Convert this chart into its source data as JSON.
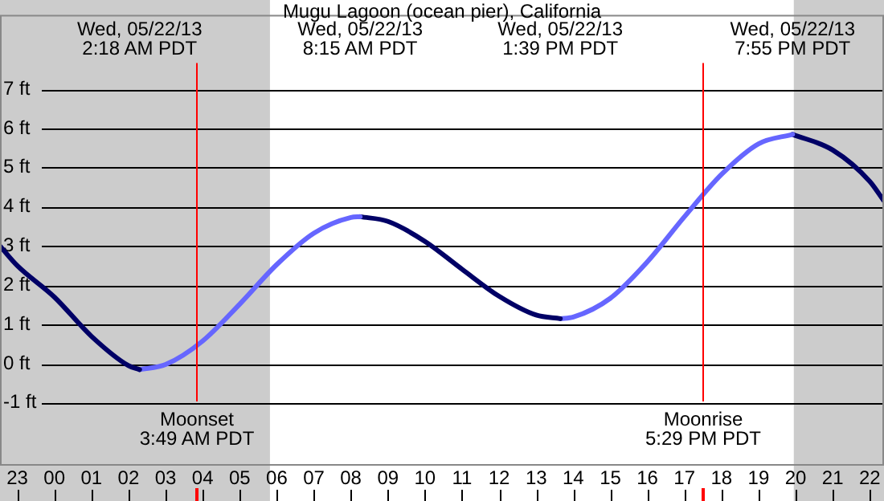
{
  "chart_data": {
    "type": "line",
    "title": "Mugu Lagoon (ocean pier), California",
    "xlim": [
      "--05-21T22:32",
      "--05-22T22:23"
    ],
    "xticks": [
      {
        "value": "--05-21T23:00",
        "label": "23"
      },
      {
        "value": "--05-22T00:00",
        "label": "00"
      },
      {
        "value": "--05-22T01:00",
        "label": "01"
      },
      {
        "value": "--05-22T02:00",
        "label": "02"
      },
      {
        "value": "--05-22T03:00",
        "label": "03"
      },
      {
        "value": "--05-22T04:00",
        "label": "04"
      },
      {
        "value": "--05-22T05:00",
        "label": "05"
      },
      {
        "value": "--05-22T06:00",
        "label": "06"
      },
      {
        "value": "--05-22T07:00",
        "label": "07"
      },
      {
        "value": "--05-22T08:00",
        "label": "08"
      },
      {
        "value": "--05-22T09:00",
        "label": "09"
      },
      {
        "value": "--05-22T10:00",
        "label": "10"
      },
      {
        "value": "--05-22T11:00",
        "label": "11"
      },
      {
        "value": "--05-22T12:00",
        "label": "12"
      },
      {
        "value": "--05-22T13:00",
        "label": "13"
      },
      {
        "value": "--05-22T14:00",
        "label": "14"
      },
      {
        "value": "--05-22T15:00",
        "label": "15"
      },
      {
        "value": "--05-22T16:00",
        "label": "16"
      },
      {
        "value": "--05-22T17:00",
        "label": "17"
      },
      {
        "value": "--05-22T18:00",
        "label": "18"
      },
      {
        "value": "--05-22T19:00",
        "label": "19"
      },
      {
        "value": "--05-22T20:00",
        "label": "20"
      },
      {
        "value": "--05-22T21:00",
        "label": "21"
      },
      {
        "value": "--05-22T22:00",
        "label": "22"
      }
    ],
    "ylim": [
      -2.6,
      8.9
    ],
    "yticks": [
      {
        "value": -1,
        "label": "-1 ft"
      },
      {
        "value": 0,
        "label": "0 ft"
      },
      {
        "value": 1,
        "label": "1 ft"
      },
      {
        "value": 2,
        "label": "2 ft"
      },
      {
        "value": 3,
        "label": "3 ft"
      },
      {
        "value": 4,
        "label": "4 ft"
      },
      {
        "value": 5,
        "label": "5 ft"
      },
      {
        "value": 6,
        "label": "6 ft"
      },
      {
        "value": 7,
        "label": "7 ft"
      }
    ],
    "grid": "y",
    "legend": false,
    "marker": "none",
    "line_style": "solid",
    "series": [
      {
        "color": "#000066",
        "x": [
          "--05-21T22:32",
          "--05-21T23:00",
          "--05-22T00:00",
          "--05-22T01:00",
          "--05-22T02:00",
          "--05-22T02:18"
        ],
        "values": [
          3.0,
          2.5,
          1.7,
          0.7,
          -0.05,
          -0.15
        ]
      },
      {
        "color": "#6666ff",
        "x": [
          "--05-22T02:18",
          "--05-22T03:00",
          "--05-22T04:00",
          "--05-22T05:00",
          "--05-22T06:00",
          "--05-22T07:00",
          "--05-22T08:00",
          "--05-22T08:15"
        ],
        "values": [
          -0.15,
          -0.02,
          0.58,
          1.52,
          2.53,
          3.33,
          3.73,
          3.75
        ]
      },
      {
        "color": "#000066",
        "x": [
          "--05-22T08:15",
          "--05-22T09:00",
          "--05-22T10:00",
          "--05-22T11:00",
          "--05-22T12:00",
          "--05-22T13:00",
          "--05-22T13:39"
        ],
        "values": [
          3.75,
          3.63,
          3.12,
          2.41,
          1.72,
          1.24,
          1.15
        ]
      },
      {
        "color": "#6666ff",
        "x": [
          "--05-22T13:39",
          "--05-22T14:00",
          "--05-22T15:00",
          "--05-22T16:00",
          "--05-22T17:00",
          "--05-22T18:00",
          "--05-22T19:00",
          "--05-22T19:55"
        ],
        "values": [
          1.15,
          1.19,
          1.67,
          2.6,
          3.75,
          4.83,
          5.61,
          5.85
        ]
      },
      {
        "color": "#000066",
        "x": [
          "--05-22T19:55",
          "--05-22T21:00",
          "--05-22T22:00",
          "--05-22T22:23"
        ],
        "values": [
          5.85,
          5.45,
          4.65,
          4.15
        ]
      }
    ],
    "bands": [
      {
        "axis": "x",
        "from": "--05-21T22:32",
        "to": "--05-22T05:49",
        "color": "#cccccc"
      },
      {
        "axis": "x",
        "from": "--05-22T19:57",
        "to": "--05-22T22:23",
        "color": "#cccccc"
      }
    ],
    "ref_lines": [
      {
        "axis": "x",
        "value": "--05-22T03:49",
        "label": "Moonset\n3:49 AM PDT",
        "color": "#ff0000"
      },
      {
        "axis": "x",
        "value": "--05-22T17:29",
        "label": "Moonrise\n5:29 PM PDT",
        "color": "#ff0000"
      }
    ],
    "annotations": [
      "Wed, 05/22/13\n2:18 AM PDT",
      "Wed, 05/22/13\n8:15 AM PDT",
      "Wed, 05/22/13\n1:39 PM PDT",
      "Wed, 05/22/13\n7:55 PM PDT"
    ]
  }
}
